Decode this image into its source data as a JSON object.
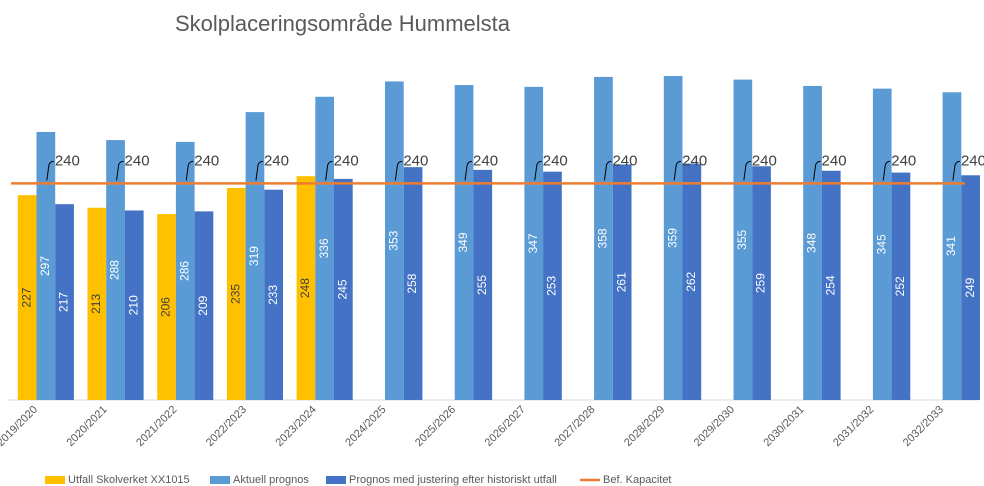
{
  "chart_data": {
    "type": "bar-line",
    "title": "Skolplaceringsområde Hummelsta",
    "categories": [
      "2019/2020",
      "2020/2021",
      "2021/2022",
      "2022/2023",
      "2023/2024",
      "2024/2025",
      "2025/2026",
      "2026/2027",
      "2027/2028",
      "2028/2029",
      "2029/2030",
      "2030/2031",
      "2031/2032",
      "2032/2033"
    ],
    "series": [
      {
        "name": "Utfall Skolverket XX1015",
        "color": "#ffc000",
        "kind": "bar",
        "values": [
          227,
          213,
          206,
          235,
          248,
          null,
          null,
          null,
          null,
          null,
          null,
          null,
          null,
          null
        ]
      },
      {
        "name": "Aktuell prognos",
        "color": "#5b9bd5",
        "kind": "bar",
        "values": [
          297,
          288,
          286,
          319,
          336,
          353,
          349,
          347,
          358,
          359,
          355,
          348,
          345,
          341
        ]
      },
      {
        "name": "Prognos med justering efter historiskt utfall",
        "color": "#4472c4",
        "kind": "bar",
        "values": [
          217,
          210,
          209,
          233,
          245,
          258,
          255,
          253,
          261,
          262,
          259,
          254,
          252,
          249
        ]
      },
      {
        "name": "Bef. Kapacitet",
        "color": "#ed7d31",
        "kind": "line",
        "values": [
          240,
          240,
          240,
          240,
          240,
          240,
          240,
          240,
          240,
          240,
          240,
          240,
          240,
          240
        ]
      }
    ],
    "ylim": [
      0,
      400
    ]
  }
}
